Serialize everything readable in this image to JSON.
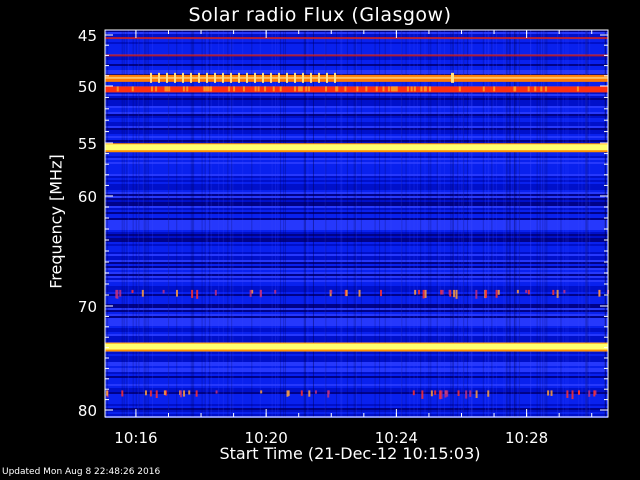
{
  "chart_data": {
    "type": "heatmap",
    "title": "Solar radio Flux (Glasgow)",
    "xlabel": "Start Time (21-Dec-12 10:15:03)",
    "ylabel": "Frequency [MHz]",
    "x_ticks": [
      "10:16",
      "10:20",
      "10:24",
      "10:28"
    ],
    "y_ticks": [
      "45",
      "50",
      "55",
      "60",
      "70",
      "80"
    ],
    "xlim": [
      "10:15:03",
      "10:30:30"
    ],
    "ylim": [
      44.5,
      80.2
    ],
    "y_scale": "nonlinear (log-like)",
    "colormap": [
      "#000060",
      "#0018ff",
      "#3a3aff",
      "#ff2020",
      "#ffa000",
      "#ffff80"
    ],
    "bright_bands_mhz": [
      {
        "freq": 49.3,
        "level": "orange"
      },
      {
        "freq": 50.3,
        "level": "red-orange"
      },
      {
        "freq": 55.4,
        "level": "yellow"
      },
      {
        "freq": 73.9,
        "level": "yellow"
      }
    ],
    "red_rows_mhz": [
      45.3,
      47.0
    ],
    "spotty_rows_mhz": [
      68.9,
      78.5
    ]
  },
  "footer": {
    "updated": "Updated Mon Aug  8 22:48:26 2016"
  }
}
